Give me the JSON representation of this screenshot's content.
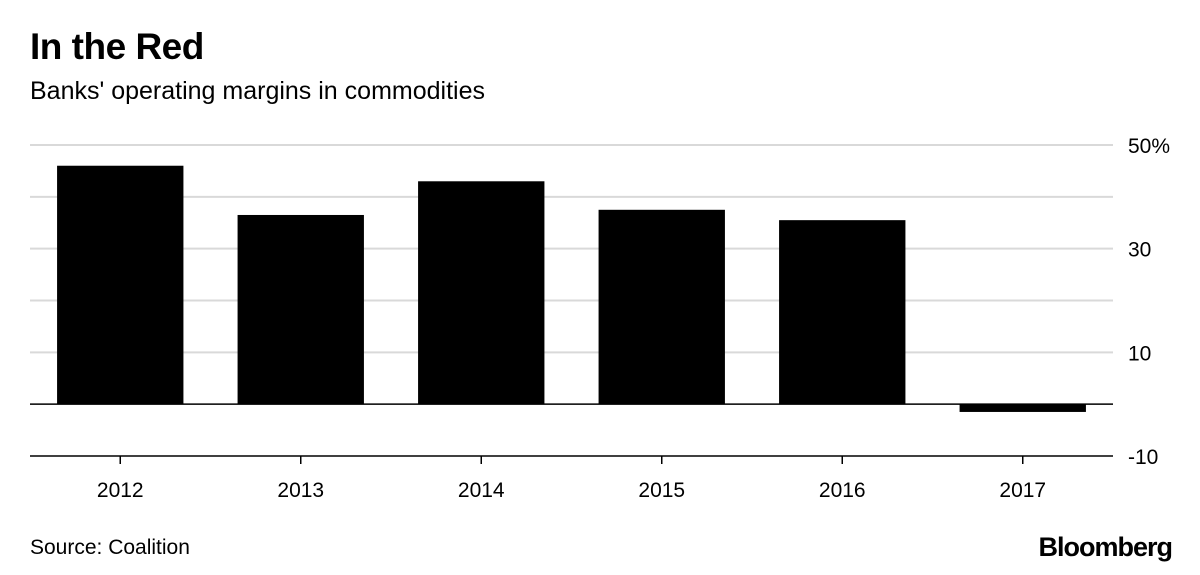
{
  "title": "In the Red",
  "subtitle": "Banks' operating margins in commodities",
  "source": "Source: Coalition",
  "logo": "Bloomberg",
  "colors": {
    "bar": "#000000",
    "grid": "#d9d9d9",
    "zero_line": "#000000"
  },
  "chart_data": {
    "type": "bar",
    "title": "In the Red",
    "subtitle": "Banks' operating margins in commodities",
    "xlabel": "",
    "ylabel": "",
    "categories": [
      "2012",
      "2013",
      "2014",
      "2015",
      "2016",
      "2017"
    ],
    "values": [
      46,
      36.5,
      43,
      37.5,
      35.5,
      -1.5
    ],
    "ylim": [
      -10,
      50
    ],
    "yticks": [
      50,
      40,
      30,
      20,
      10,
      0,
      -10
    ],
    "ytick_labels": [
      "50%",
      "",
      "30",
      "",
      "10",
      "",
      "-10"
    ],
    "grid": true,
    "axis_side": "right"
  }
}
